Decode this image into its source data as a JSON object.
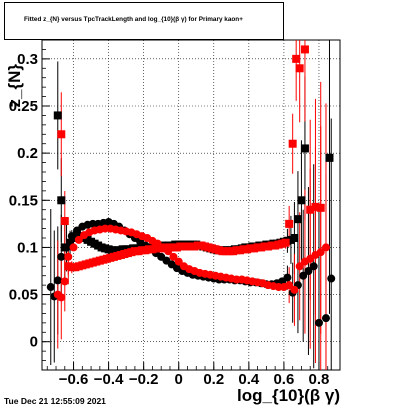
{
  "canvas": {
    "title": "Fitted z_{N} versus TpcTrackLength and log_{10}(β γ) for Primary kaon+",
    "footer": "Tue Dec 21 12:55:09 2021"
  },
  "chart_data": {
    "type": "scatter",
    "title": "Fitted z_{N} versus TpcTrackLength and log_{10}(β γ) for Primary kaon+",
    "xlabel": "log_{10}(β γ)",
    "ylabel": "z_{N}",
    "xlim": [
      -0.78,
      0.92
    ],
    "ylim": [
      -0.03,
      0.32
    ],
    "xticks": [
      -0.6,
      -0.4,
      -0.2,
      0,
      0.2,
      0.4,
      0.6,
      0.8
    ],
    "xtick_labels": [
      "−0.6",
      "−0.4",
      "−0.2",
      "0",
      "0.2",
      "0.4",
      "0.6",
      "0.8"
    ],
    "yticks": [
      0,
      0.05,
      0.1,
      0.15,
      0.2,
      0.25,
      0.3
    ],
    "ytick_labels": [
      "0",
      "0.05",
      "0.1",
      "0.15",
      "0.2",
      "0.25",
      "0.3"
    ],
    "grid": true,
    "colors": {
      "black_series": "#000000",
      "red_series": "#ff0000"
    },
    "series": [
      {
        "color": "#000000",
        "marker": "square",
        "points": [
          [
            -0.69,
            0.24
          ],
          [
            -0.67,
            0.15
          ],
          [
            -0.65,
            0.1
          ],
          [
            -0.62,
            0.105
          ],
          [
            -0.6,
            0.11
          ],
          [
            -0.58,
            0.113
          ],
          [
            -0.56,
            0.112
          ],
          [
            -0.54,
            0.11
          ],
          [
            -0.52,
            0.108
          ],
          [
            -0.5,
            0.106
          ],
          [
            -0.48,
            0.104
          ],
          [
            -0.46,
            0.102
          ],
          [
            -0.44,
            0.1
          ],
          [
            -0.42,
            0.099
          ],
          [
            -0.4,
            0.098
          ],
          [
            -0.38,
            0.097
          ],
          [
            -0.36,
            0.097
          ],
          [
            -0.34,
            0.097
          ],
          [
            -0.32,
            0.098
          ],
          [
            -0.3,
            0.098
          ],
          [
            -0.28,
            0.098
          ],
          [
            -0.26,
            0.099
          ],
          [
            -0.24,
            0.099
          ],
          [
            -0.22,
            0.099
          ],
          [
            -0.2,
            0.1
          ],
          [
            -0.18,
            0.1
          ],
          [
            -0.16,
            0.1
          ],
          [
            -0.14,
            0.101
          ],
          [
            -0.12,
            0.101
          ],
          [
            -0.1,
            0.101
          ],
          [
            -0.08,
            0.102
          ],
          [
            -0.06,
            0.102
          ],
          [
            -0.04,
            0.102
          ],
          [
            -0.02,
            0.103
          ],
          [
            0.0,
            0.103
          ],
          [
            0.02,
            0.103
          ],
          [
            0.04,
            0.103
          ],
          [
            0.06,
            0.103
          ],
          [
            0.08,
            0.103
          ],
          [
            0.1,
            0.103
          ],
          [
            0.12,
            0.102
          ],
          [
            0.14,
            0.101
          ],
          [
            0.16,
            0.1
          ],
          [
            0.18,
            0.099
          ],
          [
            0.2,
            0.098
          ],
          [
            0.22,
            0.097
          ],
          [
            0.24,
            0.097
          ],
          [
            0.26,
            0.097
          ],
          [
            0.28,
            0.097
          ],
          [
            0.3,
            0.097
          ],
          [
            0.32,
            0.098
          ],
          [
            0.34,
            0.098
          ],
          [
            0.36,
            0.099
          ],
          [
            0.38,
            0.1
          ],
          [
            0.4,
            0.1
          ],
          [
            0.42,
            0.101
          ],
          [
            0.44,
            0.101
          ],
          [
            0.46,
            0.102
          ],
          [
            0.48,
            0.102
          ],
          [
            0.5,
            0.103
          ],
          [
            0.52,
            0.103
          ],
          [
            0.54,
            0.104
          ],
          [
            0.56,
            0.104
          ],
          [
            0.58,
            0.105
          ],
          [
            0.6,
            0.106
          ],
          [
            0.62,
            0.107
          ],
          [
            0.64,
            0.108
          ],
          [
            0.66,
            0.11
          ],
          [
            0.68,
            0.13
          ],
          [
            0.7,
            0.15
          ],
          [
            0.72,
            0.205
          ],
          [
            0.86,
            0.195
          ]
        ]
      },
      {
        "color": "#000000",
        "marker": "circle",
        "points": [
          [
            -0.73,
            0.058
          ],
          [
            -0.71,
            0.048
          ],
          [
            -0.69,
            0.065
          ],
          [
            -0.67,
            0.09
          ],
          [
            -0.64,
            0.1
          ],
          [
            -0.61,
            0.112
          ],
          [
            -0.58,
            0.118
          ],
          [
            -0.55,
            0.122
          ],
          [
            -0.52,
            0.124
          ],
          [
            -0.49,
            0.125
          ],
          [
            -0.46,
            0.125
          ],
          [
            -0.43,
            0.126
          ],
          [
            -0.4,
            0.127
          ],
          [
            -0.37,
            0.125
          ],
          [
            -0.34,
            0.122
          ],
          [
            -0.31,
            0.118
          ],
          [
            -0.28,
            0.114
          ],
          [
            -0.25,
            0.11
          ],
          [
            -0.22,
            0.106
          ],
          [
            -0.19,
            0.102
          ],
          [
            -0.16,
            0.098
          ],
          [
            -0.13,
            0.094
          ],
          [
            -0.1,
            0.09
          ],
          [
            -0.07,
            0.086
          ],
          [
            -0.04,
            0.082
          ],
          [
            -0.01,
            0.078
          ],
          [
            0.02,
            0.075
          ],
          [
            0.05,
            0.073
          ],
          [
            0.08,
            0.071
          ],
          [
            0.11,
            0.07
          ],
          [
            0.14,
            0.069
          ],
          [
            0.17,
            0.068
          ],
          [
            0.2,
            0.067
          ],
          [
            0.23,
            0.066
          ],
          [
            0.26,
            0.066
          ],
          [
            0.29,
            0.066
          ],
          [
            0.32,
            0.065
          ],
          [
            0.35,
            0.065
          ],
          [
            0.38,
            0.064
          ],
          [
            0.41,
            0.063
          ],
          [
            0.44,
            0.063
          ],
          [
            0.47,
            0.062
          ],
          [
            0.5,
            0.061
          ],
          [
            0.53,
            0.061
          ],
          [
            0.56,
            0.062
          ],
          [
            0.59,
            0.064
          ],
          [
            0.62,
            0.068
          ],
          [
            0.65,
            0.052
          ],
          [
            0.68,
            0.06
          ],
          [
            0.71,
            0.07
          ],
          [
            0.74,
            0.075
          ],
          [
            0.77,
            0.08
          ],
          [
            0.8,
            0.02
          ],
          [
            0.84,
            0.025
          ],
          [
            0.87,
            0.067
          ]
        ]
      },
      {
        "color": "#ff0000",
        "marker": "square",
        "points": [
          [
            -0.67,
            0.22
          ],
          [
            -0.65,
            0.128
          ],
          [
            -0.63,
            0.08
          ],
          [
            -0.61,
            0.079
          ],
          [
            -0.59,
            0.079
          ],
          [
            -0.57,
            0.08
          ],
          [
            -0.55,
            0.081
          ],
          [
            -0.53,
            0.082
          ],
          [
            -0.51,
            0.083
          ],
          [
            -0.49,
            0.084
          ],
          [
            -0.47,
            0.085
          ],
          [
            -0.45,
            0.086
          ],
          [
            -0.43,
            0.087
          ],
          [
            -0.41,
            0.088
          ],
          [
            -0.39,
            0.089
          ],
          [
            -0.37,
            0.09
          ],
          [
            -0.35,
            0.091
          ],
          [
            -0.33,
            0.092
          ],
          [
            -0.31,
            0.093
          ],
          [
            -0.29,
            0.094
          ],
          [
            -0.27,
            0.095
          ],
          [
            -0.25,
            0.096
          ],
          [
            -0.23,
            0.096
          ],
          [
            -0.21,
            0.097
          ],
          [
            -0.19,
            0.097
          ],
          [
            -0.17,
            0.098
          ],
          [
            -0.15,
            0.098
          ],
          [
            -0.13,
            0.099
          ],
          [
            -0.11,
            0.099
          ],
          [
            -0.09,
            0.099
          ],
          [
            -0.07,
            0.1
          ],
          [
            -0.05,
            0.1
          ],
          [
            -0.03,
            0.1
          ],
          [
            -0.01,
            0.1
          ],
          [
            0.01,
            0.101
          ],
          [
            0.03,
            0.101
          ],
          [
            0.05,
            0.101
          ],
          [
            0.07,
            0.101
          ],
          [
            0.09,
            0.101
          ],
          [
            0.11,
            0.102
          ],
          [
            0.13,
            0.102
          ],
          [
            0.15,
            0.101
          ],
          [
            0.17,
            0.1
          ],
          [
            0.19,
            0.099
          ],
          [
            0.21,
            0.098
          ],
          [
            0.23,
            0.097
          ],
          [
            0.25,
            0.096
          ],
          [
            0.27,
            0.096
          ],
          [
            0.29,
            0.096
          ],
          [
            0.31,
            0.096
          ],
          [
            0.33,
            0.097
          ],
          [
            0.35,
            0.097
          ],
          [
            0.37,
            0.098
          ],
          [
            0.39,
            0.098
          ],
          [
            0.41,
            0.099
          ],
          [
            0.43,
            0.099
          ],
          [
            0.45,
            0.1
          ],
          [
            0.47,
            0.1
          ],
          [
            0.49,
            0.101
          ],
          [
            0.51,
            0.101
          ],
          [
            0.53,
            0.102
          ],
          [
            0.55,
            0.102
          ],
          [
            0.57,
            0.103
          ],
          [
            0.59,
            0.104
          ],
          [
            0.61,
            0.105
          ],
          [
            0.63,
            0.125
          ],
          [
            0.65,
            0.21
          ],
          [
            0.67,
            0.3
          ],
          [
            0.69,
            0.29
          ],
          [
            0.72,
            0.31
          ],
          [
            0.75,
            0.14
          ],
          [
            0.78,
            0.143
          ],
          [
            0.81,
            0.142
          ]
        ]
      },
      {
        "color": "#ff0000",
        "marker": "circle",
        "points": [
          [
            -0.69,
            0.05
          ],
          [
            -0.67,
            0.047
          ],
          [
            -0.65,
            0.064
          ],
          [
            -0.63,
            0.09
          ],
          [
            -0.6,
            0.1
          ],
          [
            -0.57,
            0.108
          ],
          [
            -0.54,
            0.113
          ],
          [
            -0.51,
            0.116
          ],
          [
            -0.48,
            0.118
          ],
          [
            -0.45,
            0.119
          ],
          [
            -0.42,
            0.12
          ],
          [
            -0.39,
            0.12
          ],
          [
            -0.36,
            0.119
          ],
          [
            -0.33,
            0.118
          ],
          [
            -0.3,
            0.117
          ],
          [
            -0.27,
            0.116
          ],
          [
            -0.24,
            0.114
          ],
          [
            -0.21,
            0.112
          ],
          [
            -0.18,
            0.11
          ],
          [
            -0.15,
            0.107
          ],
          [
            -0.12,
            0.104
          ],
          [
            -0.09,
            0.1
          ],
          [
            -0.06,
            0.096
          ],
          [
            -0.03,
            0.09
          ],
          [
            0.0,
            0.085
          ],
          [
            0.03,
            0.08
          ],
          [
            0.06,
            0.077
          ],
          [
            0.09,
            0.075
          ],
          [
            0.12,
            0.073
          ],
          [
            0.15,
            0.072
          ],
          [
            0.18,
            0.071
          ],
          [
            0.21,
            0.07
          ],
          [
            0.24,
            0.069
          ],
          [
            0.27,
            0.068
          ],
          [
            0.3,
            0.067
          ],
          [
            0.33,
            0.066
          ],
          [
            0.36,
            0.066
          ],
          [
            0.39,
            0.065
          ],
          [
            0.42,
            0.064
          ],
          [
            0.45,
            0.063
          ],
          [
            0.48,
            0.062
          ],
          [
            0.51,
            0.06
          ],
          [
            0.54,
            0.059
          ],
          [
            0.57,
            0.058
          ],
          [
            0.6,
            0.058
          ],
          [
            0.63,
            0.06
          ],
          [
            0.66,
            0.055
          ],
          [
            0.69,
            0.08
          ],
          [
            0.72,
            0.085
          ],
          [
            0.75,
            0.088
          ],
          [
            0.78,
            0.092
          ],
          [
            0.81,
            0.095
          ],
          [
            0.84,
            0.1
          ]
        ]
      }
    ]
  }
}
